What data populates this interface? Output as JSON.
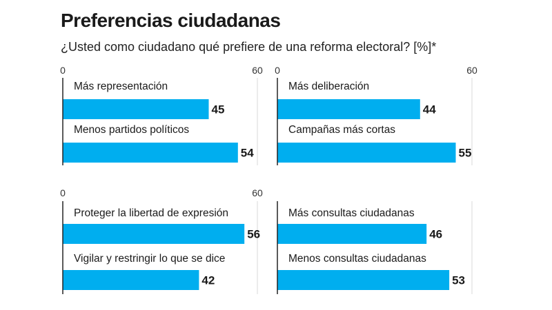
{
  "header": {
    "title": "Preferencias ciudadanas",
    "subtitle": "¿Usted como ciudadano qué prefiere de una reforma electoral?   [%]*"
  },
  "colors": {
    "bar": "#00aeef",
    "axis": "#222222",
    "grid": "#d9d9d9",
    "text": "#1a1a1a"
  },
  "chart_data": [
    {
      "type": "bar",
      "orientation": "horizontal",
      "categories": [
        "Más representación",
        "Menos partidos políticos"
      ],
      "values": [
        45,
        54
      ],
      "xlim": [
        0,
        60
      ],
      "ticks": [
        "0",
        "60"
      ],
      "grid": true
    },
    {
      "type": "bar",
      "orientation": "horizontal",
      "categories": [
        "Más deliberación",
        "Campañas más cortas"
      ],
      "values": [
        44,
        55
      ],
      "xlim": [
        0,
        60
      ],
      "ticks": [
        "0",
        "60"
      ],
      "grid": true
    },
    {
      "type": "bar",
      "orientation": "horizontal",
      "categories": [
        "Proteger la libertad de expresión",
        "Vigilar y restringir lo que se dice"
      ],
      "values": [
        56,
        42
      ],
      "xlim": [
        0,
        60
      ],
      "ticks": [
        "0",
        "60"
      ],
      "grid": true
    },
    {
      "type": "bar",
      "orientation": "horizontal",
      "categories": [
        "Más consultas ciudadanas",
        "Menos consultas ciudadanas"
      ],
      "values": [
        46,
        53
      ],
      "xlim": [
        0,
        60
      ],
      "ticks": [],
      "grid": true
    }
  ]
}
